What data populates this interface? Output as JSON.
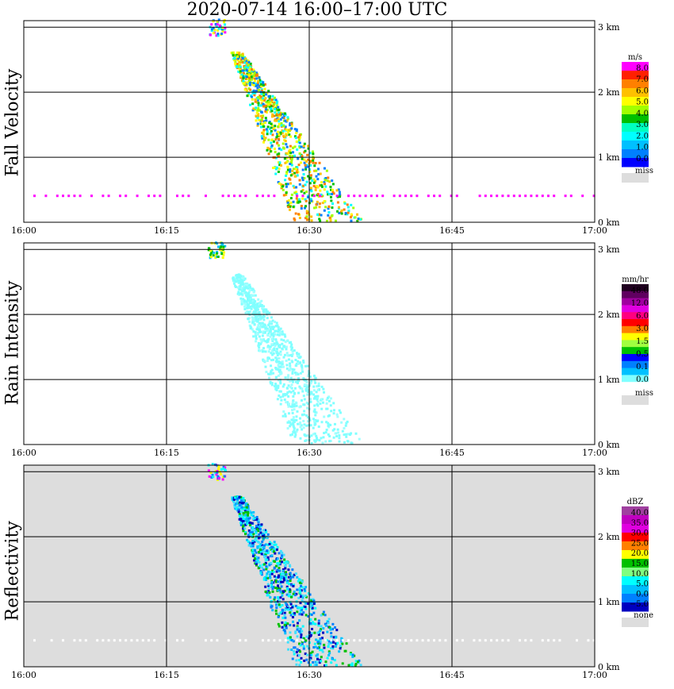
{
  "title": "2020-07-14   16:00–17:00 UTC",
  "chart_data": [
    {
      "type": "heatmap",
      "ylabel": "Fall Velocity",
      "x_ticks": [
        "16:00",
        "16:15",
        "16:30",
        "16:45",
        "17:00"
      ],
      "xlim": [
        "16:00",
        "17:00"
      ],
      "y_ticks": [
        "0 km",
        "1 km",
        "2 km",
        "3 km"
      ],
      "ylim": [
        0,
        3.1
      ],
      "grid": true,
      "background": "#ffffff",
      "colorbar": {
        "unit": "m/s",
        "labels": [
          "8.0",
          "7.0",
          "6.0",
          "5.0",
          "4.0",
          "3.0",
          "2.0",
          "1.0",
          "0.0"
        ],
        "colors": [
          "#ff00ff",
          "#ff2000",
          "#ff8000",
          "#ffc000",
          "#ffff00",
          "#a0ff00",
          "#00c000",
          "#00ffc0",
          "#00ffff",
          "#00c0ff",
          "#0080ff",
          "#0000ff"
        ],
        "miss_label": "miss",
        "miss_color": "#dddddd"
      }
    },
    {
      "type": "heatmap",
      "ylabel": "Rain Intensity",
      "x_ticks": [
        "16:00",
        "16:15",
        "16:30",
        "16:45",
        "17:00"
      ],
      "xlim": [
        "16:00",
        "17:00"
      ],
      "y_ticks": [
        "0 km",
        "1 km",
        "2 km",
        "3 km"
      ],
      "ylim": [
        0,
        3.1
      ],
      "grid": true,
      "background": "#ffffff",
      "colorbar": {
        "unit": "mm/hr",
        "labels": [
          "48.0",
          "12.0",
          "6.0",
          "3.0",
          "1.5",
          "0.5",
          "0.1",
          "0.0"
        ],
        "colors": [
          "#200020",
          "#600060",
          "#a000a0",
          "#e000e0",
          "#ff0080",
          "#ff0000",
          "#ff8000",
          "#ffff00",
          "#a0ff40",
          "#00c000",
          "#0000ff",
          "#0080ff",
          "#00c0ff",
          "#80ffff",
          "#ffffff"
        ],
        "miss_label": "miss",
        "miss_color": "#dddddd"
      }
    },
    {
      "type": "heatmap",
      "ylabel": "Reflectivity",
      "x_ticks": [
        "16:00",
        "16:15",
        "16:30",
        "16:45",
        "17:00"
      ],
      "xlim": [
        "16:00",
        "17:00"
      ],
      "y_ticks": [
        "0 km",
        "1 km",
        "2 km",
        "3 km"
      ],
      "ylim": [
        0,
        3.1
      ],
      "grid": true,
      "background": "#dddddd",
      "colorbar": {
        "unit": "dBZ",
        "labels": [
          "40.0",
          "35.0",
          "30.0",
          "25.0",
          "20.0",
          "15.0",
          "10.0",
          "5.0",
          "0.0",
          "−5.0"
        ],
        "colors": [
          "#a040a0",
          "#c000c0",
          "#e000e0",
          "#ff0000",
          "#ff8000",
          "#ffff00",
          "#00c000",
          "#80ff80",
          "#00ffff",
          "#00c0ff",
          "#0080ff",
          "#0000c0"
        ],
        "miss_label": "none",
        "miss_color": "#dddddd"
      }
    }
  ]
}
